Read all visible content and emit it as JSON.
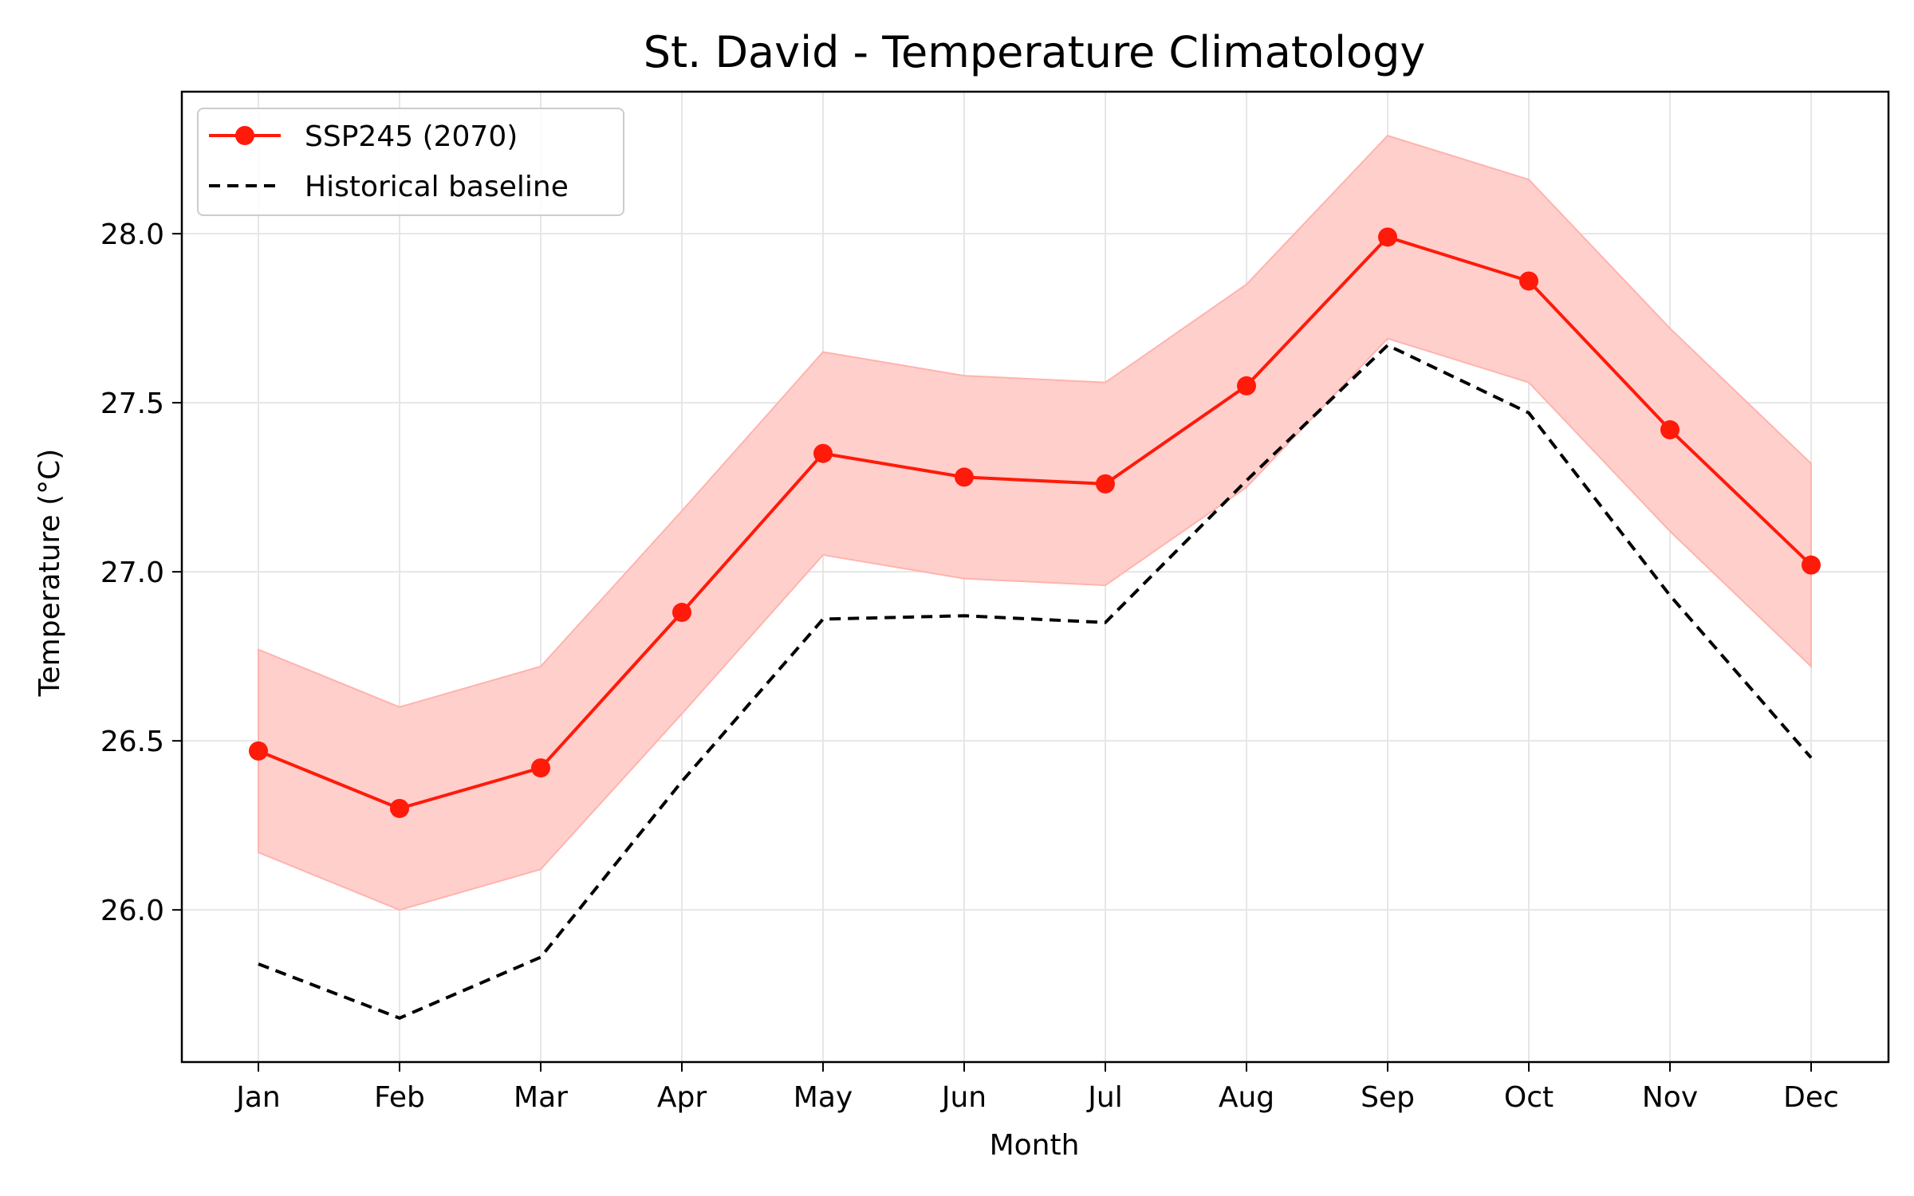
{
  "chart_data": {
    "type": "line",
    "title": "St. David - Temperature Climatology",
    "xlabel": "Month",
    "ylabel": "Temperature (°C)",
    "categories": [
      "Jan",
      "Feb",
      "Mar",
      "Apr",
      "May",
      "Jun",
      "Jul",
      "Aug",
      "Sep",
      "Oct",
      "Nov",
      "Dec"
    ],
    "ylim": [
      25.55,
      28.42
    ],
    "yticks": [
      26.0,
      26.5,
      27.0,
      27.5,
      28.0
    ],
    "ytick_labels": [
      "26.0",
      "26.5",
      "27.0",
      "27.5",
      "28.0"
    ],
    "grid": true,
    "legend_position": "top-left",
    "series": [
      {
        "name": "SSP245 (2070)",
        "style": "solid-with-markers",
        "color": "#ff1a0a",
        "values": [
          26.47,
          26.3,
          26.42,
          26.88,
          27.35,
          27.28,
          27.26,
          27.55,
          27.99,
          27.86,
          27.42,
          27.02
        ],
        "band_lower": [
          26.17,
          26.0,
          26.12,
          26.58,
          27.05,
          26.98,
          26.96,
          27.25,
          27.69,
          27.56,
          27.12,
          26.72
        ],
        "band_upper": [
          26.77,
          26.6,
          26.72,
          27.18,
          27.65,
          27.58,
          27.56,
          27.85,
          28.29,
          28.16,
          27.72,
          27.32
        ],
        "band_color": "#ffcfcc"
      },
      {
        "name": "Historical baseline",
        "style": "dashed",
        "color": "#000000",
        "values": [
          25.84,
          25.68,
          25.86,
          26.38,
          26.86,
          26.87,
          26.85,
          27.27,
          27.67,
          27.47,
          26.93,
          26.45
        ]
      }
    ]
  }
}
